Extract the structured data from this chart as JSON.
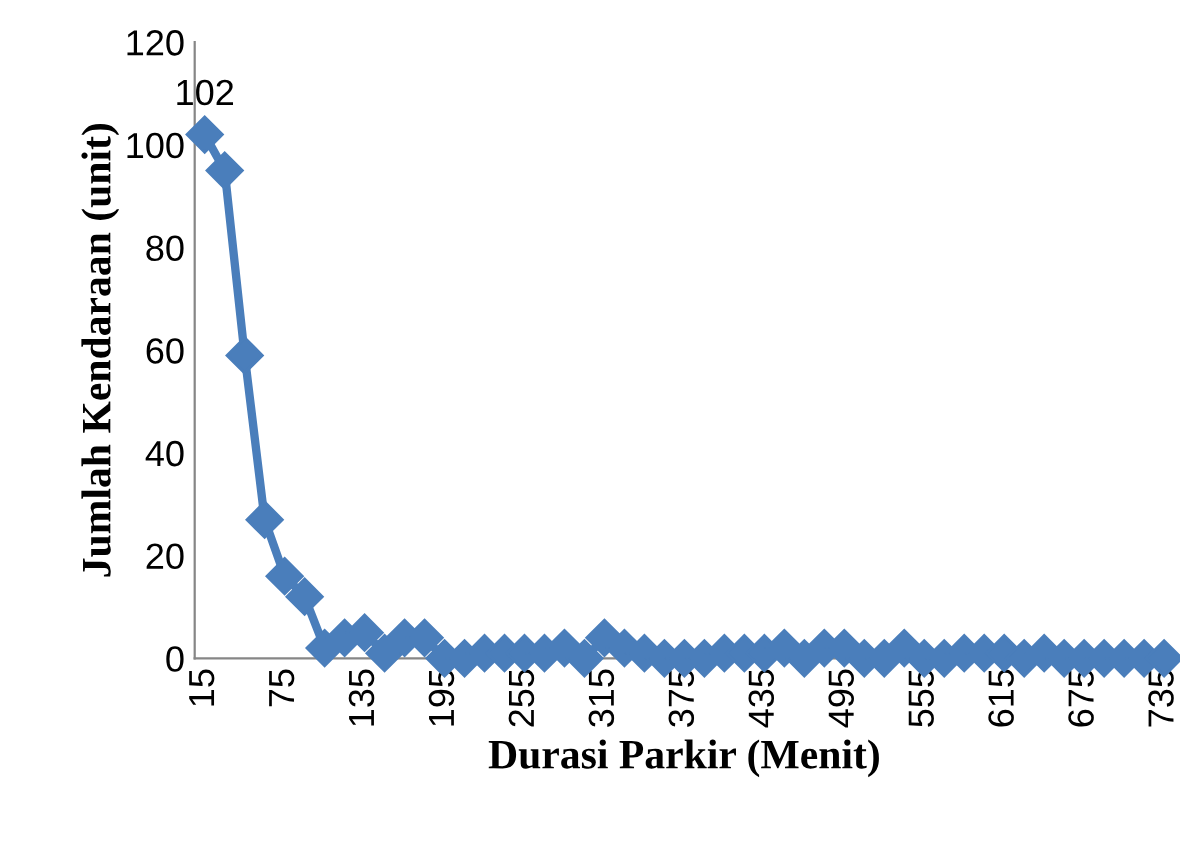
{
  "chart_data": {
    "type": "line",
    "xlabel": "Durasi Parkir (Menit)",
    "ylabel": "Jumlah Kendaraan (unit)",
    "categories": [
      "15",
      null,
      null,
      null,
      "75",
      null,
      null,
      null,
      "135",
      null,
      null,
      null,
      "195",
      null,
      null,
      null,
      "255",
      null,
      null,
      null,
      "315",
      null,
      null,
      null,
      "375",
      null,
      null,
      null,
      "435",
      null,
      null,
      null,
      "495",
      null,
      null,
      null,
      "555",
      null,
      null,
      null,
      "615",
      null,
      null,
      null,
      "675",
      null,
      null,
      null,
      "735"
    ],
    "series": [
      {
        "color": "#4a7ebb",
        "values": [
          102,
          95,
          59,
          27,
          16,
          12,
          2,
          4,
          5,
          1,
          4,
          4,
          0,
          0,
          1,
          1,
          1,
          1,
          2,
          0,
          4,
          2,
          1,
          0,
          0,
          0,
          1,
          1,
          1,
          2,
          0,
          2,
          2,
          0,
          0,
          2,
          0,
          0,
          1,
          1,
          1,
          0,
          1,
          0,
          0,
          0,
          0,
          0,
          0
        ],
        "value_labels": [
          "102",
          null,
          null,
          null,
          null,
          null,
          null,
          null,
          null,
          null,
          null,
          null,
          null,
          null,
          null,
          null,
          null,
          null,
          null,
          null,
          null,
          null,
          null,
          null,
          null,
          null,
          null,
          null,
          null,
          null,
          null,
          null,
          null,
          null,
          null,
          null,
          null,
          null,
          null,
          null,
          null,
          null,
          null,
          null,
          null,
          null,
          null,
          null,
          null
        ]
      }
    ],
    "ylim": [
      0,
      120
    ],
    "yticks": [
      0,
      20,
      40,
      60,
      80,
      100,
      120
    ],
    "marker": "diamond",
    "line_style": "solid",
    "grid": false,
    "legend": false
  }
}
